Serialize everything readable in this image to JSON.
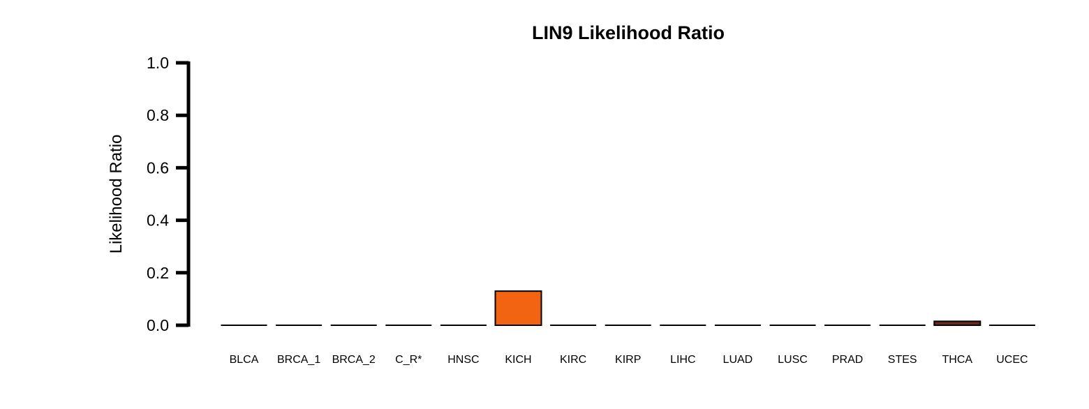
{
  "chart_data": {
    "type": "bar",
    "title": "LIN9 Likelihood Ratio",
    "xlabel": "",
    "ylabel": "Likelihood Ratio",
    "ylim": [
      0,
      1.0
    ],
    "yticks": [
      "0.0",
      "0.2",
      "0.4",
      "0.6",
      "0.8",
      "1.0"
    ],
    "grid": false,
    "categories": [
      "BLCA",
      "BRCA_1",
      "BRCA_2",
      "C_R*",
      "HNSC",
      "KICH",
      "KIRC",
      "KIRP",
      "LIHC",
      "LUAD",
      "LUSC",
      "PRAD",
      "STES",
      "THCA",
      "UCEC"
    ],
    "values": [
      0,
      0,
      0,
      0,
      0,
      0.13,
      0,
      0,
      0,
      0,
      0,
      0,
      0,
      0.015,
      0
    ],
    "colors": [
      "#000000",
      "#000000",
      "#000000",
      "#000000",
      "#000000",
      "#F26411",
      "#000000",
      "#000000",
      "#000000",
      "#000000",
      "#000000",
      "#000000",
      "#000000",
      "#6B2A1A",
      "#000000"
    ]
  }
}
